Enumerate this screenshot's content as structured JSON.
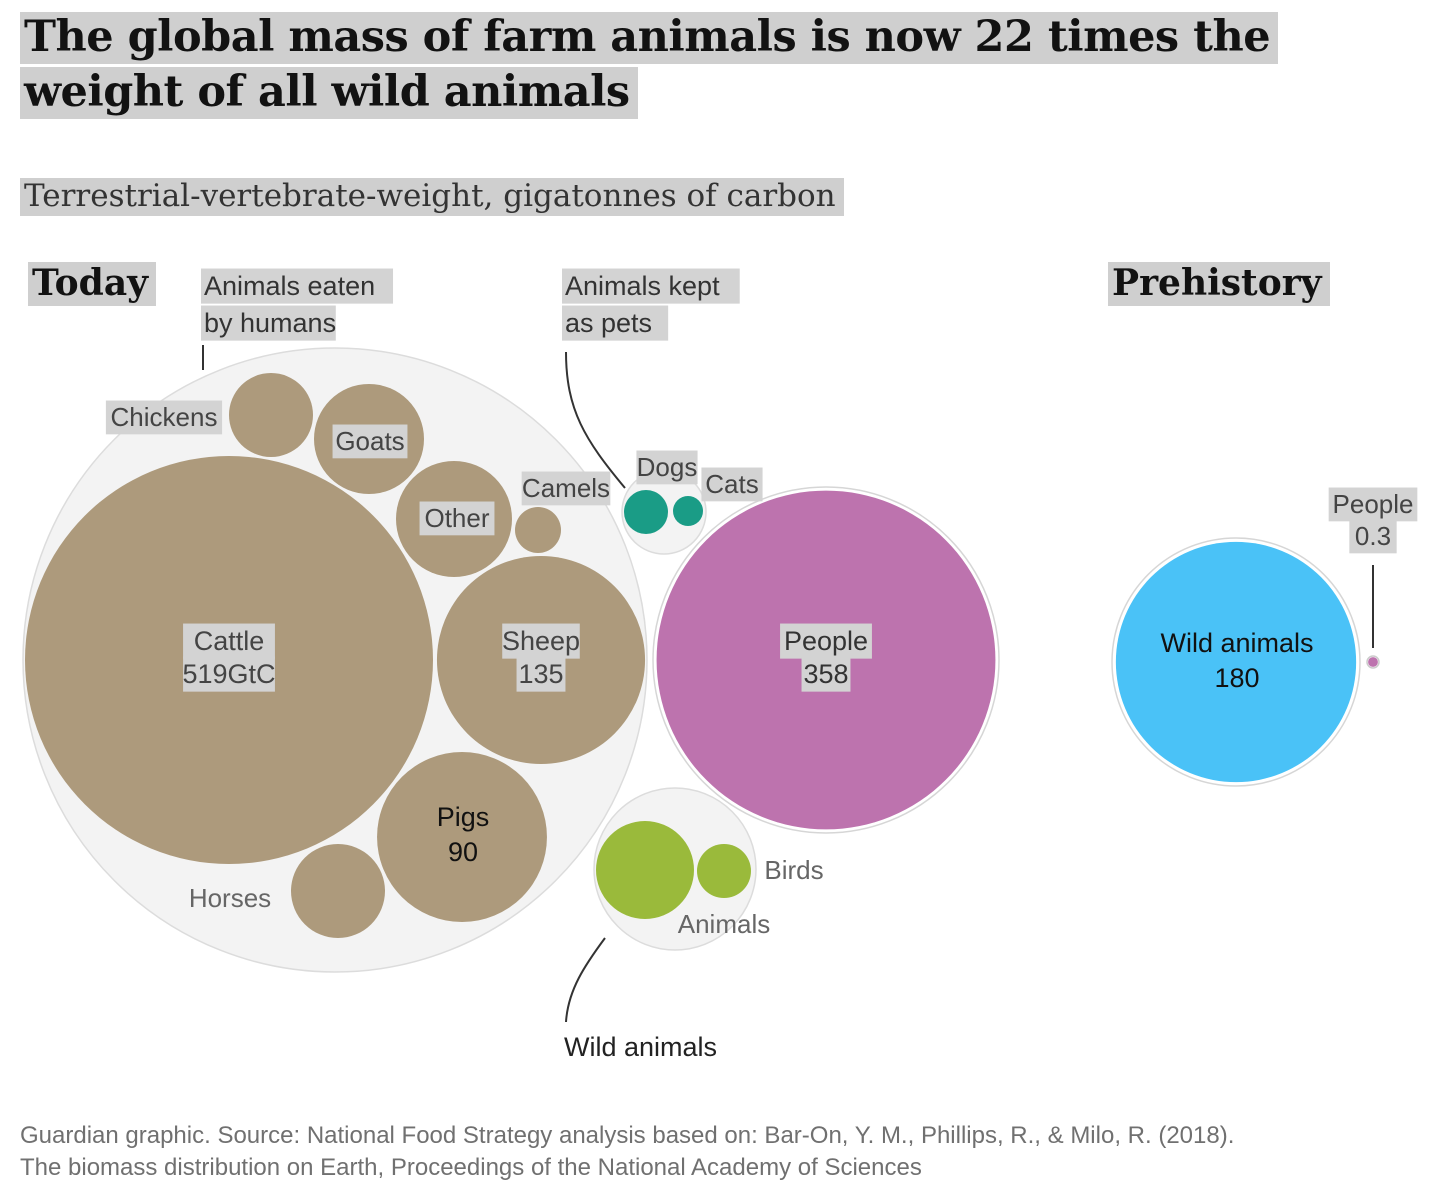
{
  "title": "The global mass of farm animals is now 22 times the weight of all wild animals",
  "subtitle": "Terrestrial-vertebrate-weight, gigatonnes of carbon",
  "sections": {
    "today": "Today",
    "prehistory": "Prehistory"
  },
  "footer": {
    "line1": "Guardian graphic. Source: National Food Strategy analysis based on: Bar-On, Y. M., Phillips, R., & Milo, R. (2018).",
    "line2": "The biomass distribution on Earth, Proceedings of the National Academy of Sciences"
  },
  "colors": {
    "farm": "#ad9a7c",
    "people": "#bd73ae",
    "pets": "#1a9c86",
    "wild_today": "#9aba3b",
    "wild_prehistory": "#4ac2f7",
    "group": "#f3f3f3",
    "label_bg": "#d3d3d3"
  },
  "chart_data": {
    "type": "packed-bubble",
    "unit": "GtC",
    "panels": [
      {
        "name": "Today",
        "groups": [
          {
            "name": "Animals eaten by humans",
            "label_lines": [
              "Animals eaten",
              "by humans"
            ],
            "items": [
              {
                "name": "Cattle",
                "value": 519,
                "value_label": "519GtC"
              },
              {
                "name": "Sheep",
                "value": 135,
                "value_label": "135"
              },
              {
                "name": "Pigs",
                "value": 90,
                "value_label": "90"
              },
              {
                "name": "Goats",
                "value": null
              },
              {
                "name": "Chickens",
                "value": null
              },
              {
                "name": "Other",
                "value": null
              },
              {
                "name": "Horses",
                "value": null
              },
              {
                "name": "Camels",
                "value": null
              }
            ]
          },
          {
            "name": "Animals kept as pets",
            "label_lines": [
              "Animals kept",
              "as pets"
            ],
            "items": [
              {
                "name": "Dogs",
                "value": null
              },
              {
                "name": "Cats",
                "value": null
              }
            ]
          },
          {
            "name": "People",
            "items": [
              {
                "name": "People",
                "value": 358,
                "value_label": "358"
              }
            ]
          },
          {
            "name": "Wild animals",
            "label_lines": [
              "Wild animals"
            ],
            "items": [
              {
                "name": "Animals",
                "value": null
              },
              {
                "name": "Birds",
                "value": null
              }
            ]
          }
        ]
      },
      {
        "name": "Prehistory",
        "items": [
          {
            "name": "Wild animals",
            "value": 180,
            "value_label": "180"
          },
          {
            "name": "People",
            "value": 0.3,
            "value_label": "0.3"
          }
        ]
      }
    ]
  }
}
